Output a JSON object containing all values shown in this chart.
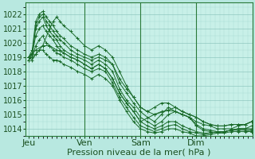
{
  "bg_color": "#b8e8e0",
  "plot_bg_color": "#c8f0e8",
  "grid_major_color": "#90c8c0",
  "grid_minor_color": "#a8dcd4",
  "line_color": "#1a6b2a",
  "xlabel": "Pression niveau de la mer( hPa )",
  "xlabel_fontsize": 8,
  "ylabel_fontsize": 7,
  "yticks": [
    1014,
    1015,
    1016,
    1017,
    1018,
    1019,
    1020,
    1021,
    1022
  ],
  "ylim": [
    1013.5,
    1022.8
  ],
  "xtick_labels": [
    "Jeu",
    "Ven",
    "Sam",
    "Dim"
  ],
  "xtick_positions": [
    0,
    96,
    192,
    288
  ],
  "xlim": [
    -5,
    384
  ],
  "vlines": [
    96,
    192,
    288
  ],
  "series": [
    [
      0,
      1019.0,
      6,
      1019.5,
      12,
      1021.5,
      18,
      1022.0,
      24,
      1022.2,
      30,
      1021.8,
      36,
      1021.5,
      42,
      1021.2,
      48,
      1020.8,
      54,
      1020.5,
      60,
      1020.3,
      72,
      1019.8,
      84,
      1019.5,
      96,
      1019.2,
      108,
      1019.0,
      120,
      1019.2,
      132,
      1019.0,
      144,
      1018.5,
      156,
      1017.5,
      168,
      1016.8,
      180,
      1016.2,
      192,
      1015.5,
      204,
      1015.2,
      216,
      1015.0,
      228,
      1015.2,
      240,
      1015.3,
      252,
      1015.2,
      264,
      1015.0,
      276,
      1014.8,
      288,
      1014.5,
      300,
      1014.3,
      312,
      1014.2,
      324,
      1014.0,
      336,
      1014.0,
      348,
      1014.0,
      360,
      1014.2,
      372,
      1014.3,
      383,
      1014.5
    ],
    [
      0,
      1018.8,
      6,
      1019.2,
      12,
      1021.2,
      18,
      1021.8,
      24,
      1022.0,
      30,
      1021.5,
      36,
      1021.2,
      42,
      1020.8,
      48,
      1020.5,
      54,
      1020.2,
      60,
      1020.0,
      72,
      1019.5,
      84,
      1019.2,
      96,
      1019.0,
      108,
      1018.8,
      120,
      1019.0,
      132,
      1018.8,
      144,
      1018.5,
      156,
      1017.2,
      168,
      1016.5,
      180,
      1015.8,
      192,
      1015.2,
      204,
      1014.8,
      216,
      1014.5,
      228,
      1015.0,
      240,
      1015.5,
      252,
      1015.2,
      264,
      1015.0,
      276,
      1014.8,
      288,
      1014.3,
      300,
      1014.0,
      312,
      1013.9,
      324,
      1013.8,
      336,
      1013.8,
      348,
      1013.9,
      360,
      1014.0,
      372,
      1014.0,
      383,
      1014.2
    ],
    [
      0,
      1019.0,
      6,
      1019.3,
      12,
      1021.0,
      18,
      1021.5,
      24,
      1021.8,
      30,
      1021.2,
      36,
      1020.8,
      42,
      1020.5,
      48,
      1020.2,
      54,
      1019.8,
      60,
      1019.5,
      72,
      1019.2,
      84,
      1019.0,
      96,
      1018.8,
      108,
      1018.5,
      120,
      1018.8,
      132,
      1018.5,
      144,
      1018.0,
      156,
      1016.8,
      168,
      1016.0,
      180,
      1015.5,
      192,
      1014.8,
      204,
      1014.5,
      216,
      1014.2,
      228,
      1014.5,
      240,
      1015.0,
      252,
      1015.2,
      264,
      1015.0,
      276,
      1014.8,
      288,
      1014.2,
      300,
      1013.9,
      312,
      1013.8,
      324,
      1013.7,
      336,
      1013.8,
      348,
      1013.9,
      360,
      1014.0,
      372,
      1014.0,
      383,
      1014.0
    ],
    [
      0,
      1019.0,
      6,
      1019.2,
      12,
      1020.5,
      18,
      1021.0,
      24,
      1021.2,
      30,
      1020.8,
      36,
      1020.5,
      42,
      1020.2,
      48,
      1019.8,
      54,
      1019.5,
      60,
      1019.3,
      72,
      1019.0,
      84,
      1018.8,
      96,
      1018.5,
      108,
      1018.2,
      120,
      1018.5,
      132,
      1018.2,
      144,
      1017.5,
      156,
      1016.5,
      168,
      1015.8,
      180,
      1015.2,
      192,
      1014.5,
      204,
      1014.2,
      216,
      1014.0,
      228,
      1014.2,
      240,
      1014.5,
      252,
      1014.5,
      264,
      1014.2,
      276,
      1014.0,
      288,
      1013.8,
      300,
      1013.7,
      312,
      1013.7,
      324,
      1013.8,
      336,
      1013.8,
      348,
      1013.9,
      360,
      1014.0,
      372,
      1014.0,
      383,
      1013.9
    ],
    [
      0,
      1019.0,
      6,
      1019.0,
      12,
      1019.8,
      18,
      1020.2,
      24,
      1020.5,
      30,
      1020.0,
      36,
      1019.8,
      42,
      1019.5,
      48,
      1019.3,
      54,
      1019.2,
      60,
      1019.0,
      72,
      1018.8,
      84,
      1018.5,
      96,
      1018.2,
      108,
      1018.0,
      120,
      1018.2,
      132,
      1018.0,
      144,
      1017.2,
      156,
      1016.2,
      168,
      1015.5,
      180,
      1014.8,
      192,
      1014.2,
      204,
      1014.0,
      216,
      1013.8,
      228,
      1014.0,
      240,
      1014.2,
      252,
      1014.3,
      264,
      1014.0,
      276,
      1013.8,
      288,
      1013.7,
      300,
      1013.6,
      312,
      1013.7,
      324,
      1013.8,
      336,
      1013.8,
      348,
      1013.9,
      360,
      1013.9,
      372,
      1013.9,
      383,
      1013.8
    ],
    [
      0,
      1019.0,
      6,
      1018.8,
      12,
      1019.2,
      18,
      1019.5,
      24,
      1019.5,
      30,
      1019.2,
      36,
      1019.0,
      42,
      1018.8,
      48,
      1018.8,
      54,
      1018.7,
      60,
      1018.5,
      72,
      1018.3,
      84,
      1018.0,
      96,
      1017.8,
      108,
      1017.5,
      120,
      1017.8,
      132,
      1017.5,
      144,
      1017.0,
      156,
      1016.0,
      168,
      1015.2,
      180,
      1014.5,
      192,
      1014.0,
      204,
      1013.8,
      216,
      1013.7,
      228,
      1013.8,
      240,
      1014.0,
      252,
      1014.0,
      264,
      1013.8,
      276,
      1013.7,
      288,
      1013.5,
      300,
      1013.5,
      312,
      1013.6,
      324,
      1013.7,
      336,
      1013.7,
      348,
      1013.8,
      360,
      1013.8,
      372,
      1013.8,
      383,
      1013.8
    ],
    [
      0,
      1019.0,
      12,
      1019.5,
      24,
      1019.8,
      36,
      1019.8,
      48,
      1019.5,
      60,
      1019.3,
      72,
      1019.0,
      84,
      1018.8,
      96,
      1018.5,
      108,
      1018.2,
      120,
      1018.5,
      132,
      1018.2,
      144,
      1017.5,
      156,
      1016.5,
      168,
      1015.8,
      180,
      1015.2,
      192,
      1014.5,
      216,
      1015.0,
      240,
      1015.3,
      252,
      1015.5,
      264,
      1015.2,
      276,
      1015.0,
      288,
      1014.8,
      300,
      1014.5,
      312,
      1014.3,
      324,
      1014.2,
      336,
      1014.2,
      348,
      1014.3,
      360,
      1014.3,
      372,
      1014.3,
      383,
      1014.5
    ],
    [
      0,
      1018.8,
      12,
      1019.2,
      24,
      1019.8,
      36,
      1021.0,
      42,
      1021.5,
      48,
      1021.8,
      54,
      1021.5,
      60,
      1021.2,
      72,
      1020.8,
      84,
      1020.3,
      96,
      1019.8,
      108,
      1019.5,
      120,
      1019.8,
      132,
      1019.5,
      144,
      1019.0,
      156,
      1018.0,
      168,
      1017.0,
      180,
      1016.2,
      192,
      1015.5,
      204,
      1015.2,
      216,
      1015.5,
      228,
      1015.8,
      240,
      1015.8,
      252,
      1015.5,
      264,
      1015.2,
      276,
      1015.0,
      288,
      1014.8,
      300,
      1014.5,
      312,
      1014.3,
      324,
      1014.2,
      336,
      1014.2,
      348,
      1014.3,
      360,
      1014.3,
      372,
      1014.3,
      383,
      1014.5
    ]
  ]
}
